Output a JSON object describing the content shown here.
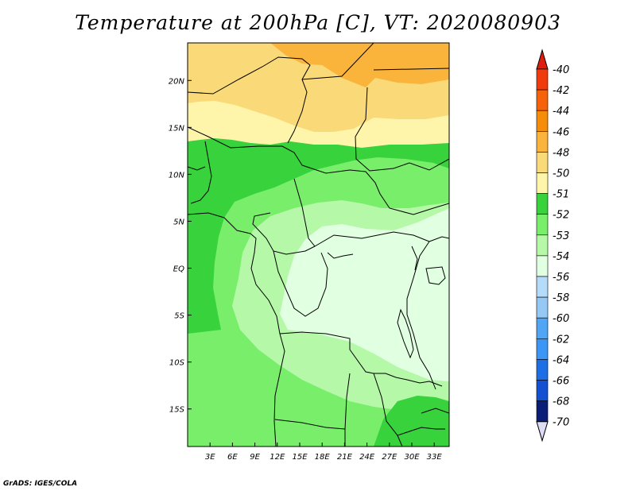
{
  "title": "Temperature at 200hPa [C], VT: 2020080903",
  "map": {
    "lon_range": [
      0,
      35
    ],
    "lat_range": [
      -19,
      24
    ],
    "lat_ticks": [
      {
        "value": 20,
        "label": "20N"
      },
      {
        "value": 15,
        "label": "15N"
      },
      {
        "value": 10,
        "label": "10N"
      },
      {
        "value": 5,
        "label": "5N"
      },
      {
        "value": 0,
        "label": "EQ"
      },
      {
        "value": -5,
        "label": "5S"
      },
      {
        "value": -10,
        "label": "10S"
      },
      {
        "value": -15,
        "label": "15S"
      }
    ],
    "lon_ticks": [
      {
        "value": 3,
        "label": "3E"
      },
      {
        "value": 6,
        "label": "6E"
      },
      {
        "value": 9,
        "label": "9E"
      },
      {
        "value": 12,
        "label": "12E"
      },
      {
        "value": 15,
        "label": "15E"
      },
      {
        "value": 18,
        "label": "18E"
      },
      {
        "value": 21,
        "label": "21E"
      },
      {
        "value": 24,
        "label": "24E"
      },
      {
        "value": 27,
        "label": "27E"
      },
      {
        "value": 30,
        "label": "30E"
      },
      {
        "value": 33,
        "label": "33E"
      }
    ]
  },
  "colorbar": {
    "top_arrow_color": "#e01c0c",
    "bottom_arrow_color": "#dcdcf5",
    "labels": [
      "-40",
      "-42",
      "-44",
      "-46",
      "-48",
      "-50",
      "-51",
      "-52",
      "-53",
      "-54",
      "-56",
      "-58",
      "-60",
      "-62",
      "-64",
      "-66",
      "-68",
      "-70"
    ],
    "bins": [
      {
        "color": "#f03c0c",
        "tier": "-42 to -40"
      },
      {
        "color": "#f5620a",
        "tier": "-44 to -42"
      },
      {
        "color": "#f58c0a",
        "tier": "-46 to -44"
      },
      {
        "color": "#fab43c",
        "tier": "-48 to -46"
      },
      {
        "color": "#fada78",
        "tier": "-50 to -48"
      },
      {
        "color": "#fff5aa",
        "tier": "-51 to -50"
      },
      {
        "color": "#37d23c",
        "tier": "-52 to -51"
      },
      {
        "color": "#78ee6a",
        "tier": "-53 to -52"
      },
      {
        "color": "#b4f8a8",
        "tier": "-54 to -53"
      },
      {
        "color": "#e1ffe1",
        "tier": "-56 to -54"
      },
      {
        "color": "#b4dcfa",
        "tier": "-58 to -56"
      },
      {
        "color": "#96c8f5",
        "tier": "-60 to -58"
      },
      {
        "color": "#50a5f5",
        "tier": "-62 to -60"
      },
      {
        "color": "#3c96f5",
        "tier": "-64 to -62"
      },
      {
        "color": "#1e6ee6",
        "tier": "-66 to -64"
      },
      {
        "color": "#1450d2",
        "tier": "-68 to -66"
      },
      {
        "color": "#0a1e78",
        "tier": "-70 to -68"
      }
    ]
  },
  "credit": "GrADS: IGES/COLA"
}
